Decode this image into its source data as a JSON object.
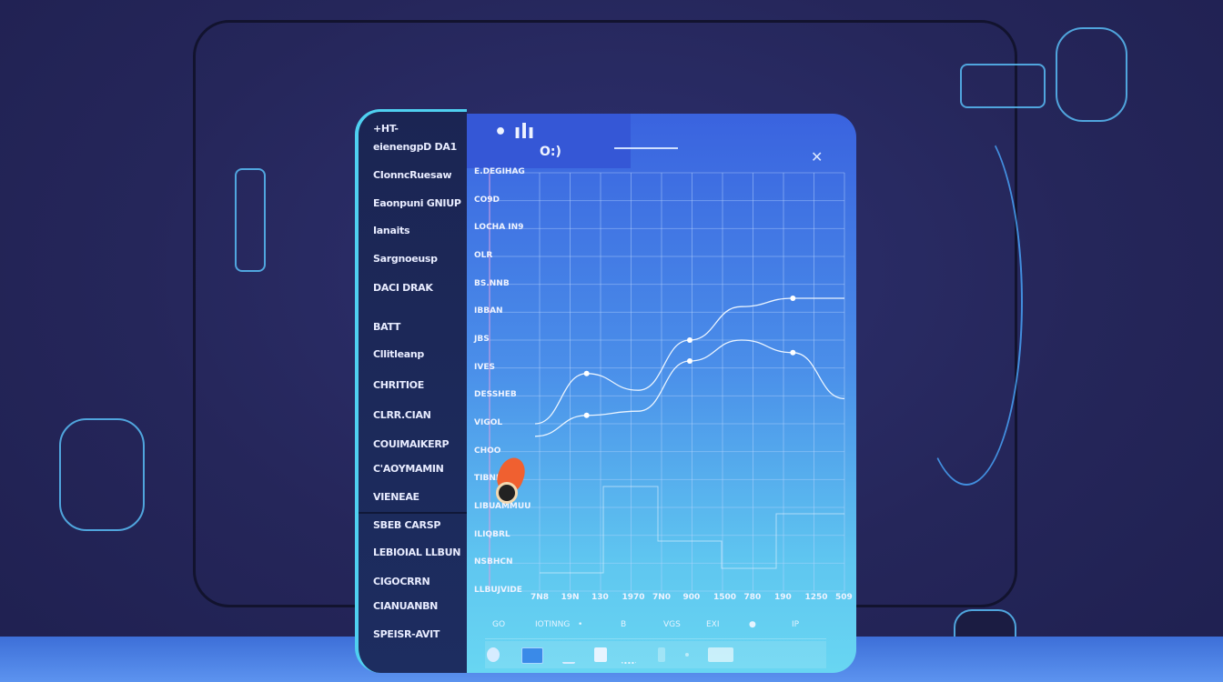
{
  "sidebar": {
    "items": [
      {
        "label": "+HT-"
      },
      {
        "label": "eienengpD DA1"
      },
      {
        "label": "CIonncRuesaw"
      },
      {
        "label": "Eaonpuni GNIUP"
      },
      {
        "label": "Ianaits"
      },
      {
        "label": "Sargnoeusp"
      },
      {
        "label": "DACI DRAK"
      },
      {
        "label": "BATT"
      },
      {
        "label": "Cllitleanp"
      },
      {
        "label": "CHRITIOE"
      },
      {
        "label": "CLRR.CIAN"
      },
      {
        "label": "COUIMAIKERP"
      },
      {
        "label": "C'AOYMAMIN"
      },
      {
        "label": "VIENEAE"
      },
      {
        "label": "SBEB CARSP"
      },
      {
        "label": "LEBIOIAL LLBUN"
      },
      {
        "label": "CIGOCRRN"
      },
      {
        "label": "CIANUANBN"
      },
      {
        "label": "SPEISR-AVIT"
      }
    ]
  },
  "panel": {
    "header_glyphs": "• ılı",
    "header_sub": "O:)",
    "close_icon": "close-icon"
  },
  "chart_data": {
    "type": "line",
    "ytick_labels": [
      "E.DEGIHAG",
      "CO9D",
      "LOCHA IN9",
      "OLR",
      "BS.NNB",
      "IBBAN",
      "JBS",
      "IVES",
      "DESSHEB",
      "VIGOL",
      "CHOO",
      "TIBNRBEI",
      "LIBUAMMUU",
      "ILIQBRL",
      "NSBHCN",
      "LLBUJVIDE"
    ],
    "xtick_labels": [
      "7N8",
      "19N",
      "130",
      "1970",
      "7N0",
      "900",
      "1500",
      "780",
      "190",
      "1250",
      "509"
    ],
    "series": [
      {
        "values": [
          40,
          52,
          48,
          60,
          68,
          70,
          70
        ]
      },
      {
        "values": [
          37,
          42,
          43,
          55,
          60,
          57,
          46
        ]
      }
    ],
    "grid": true,
    "colors": {
      "line": "#eaf4ff",
      "grid": "#bcd6ff",
      "marker": "#ffffff"
    }
  },
  "toolbar": {
    "row1": [
      "GO",
      "IOTINNG",
      "•",
      "B",
      "VGS",
      "EXI",
      "●",
      "IP"
    ],
    "row2_icons": [
      "shield-icon",
      "square-icon",
      "chart-icon",
      "image-icon",
      "mountain-icon",
      "file-icon",
      "dot-icon",
      "table-icon"
    ]
  },
  "colors": {
    "background": "#25265a",
    "sidebar": "#1c2755",
    "accent": "#4fd0f0",
    "panel_top": "#3a63df",
    "panel_bottom": "#68d6f2",
    "marker_pin": "#f06030"
  }
}
